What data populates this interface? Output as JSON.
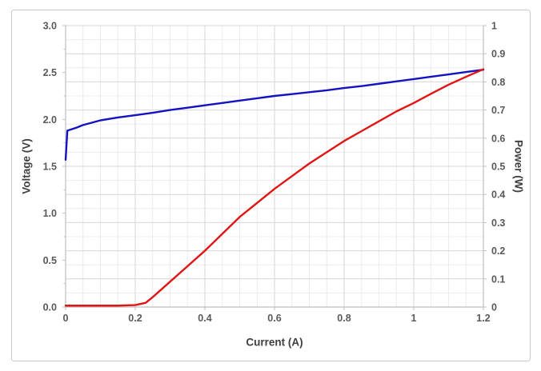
{
  "window": {
    "background": "#ffffff",
    "card_border_color": "#c9c9c9"
  },
  "colors": {
    "text_tick": "#595959",
    "text_title": "#404040",
    "axis_line": "#bfbfbf",
    "grid_major": "#d6d6d6",
    "grid_minor": "#ececec",
    "voltage_line": "#1313c4",
    "power_line": "#e11414"
  },
  "chart_data": {
    "type": "line",
    "title": "",
    "xlabel": "Current (A)",
    "ylabel_left": "Voltage (V)",
    "ylabel_right": "Power (W)",
    "grid": {
      "major": true,
      "minor": true,
      "legend": "none"
    },
    "x_axis": {
      "min": 0,
      "max": 1.2,
      "major_step": 0.2,
      "minor_step": 0.05,
      "tick_labels": [
        "0",
        "0.2",
        "0.4",
        "0.6",
        "0.8",
        "1",
        "1.2"
      ],
      "tick_values": [
        0,
        0.2,
        0.4,
        0.6,
        0.8,
        1.0,
        1.2
      ]
    },
    "y_axis_left": {
      "min": 0,
      "max": 3.0,
      "major_step": 0.5,
      "tick_labels": [
        "0.0",
        "0.5",
        "1.0",
        "1.5",
        "2.0",
        "2.5",
        "3.0"
      ],
      "tick_values": [
        0.0,
        0.5,
        1.0,
        1.5,
        2.0,
        2.5,
        3.0
      ]
    },
    "y_axis_right": {
      "min": 0,
      "max": 1.0,
      "major_step": 0.1,
      "minor_step": 0.05,
      "tick_labels": [
        "0",
        "0.1",
        "0.2",
        "0.3",
        "0.4",
        "0.5",
        "0.6",
        "0.7",
        "0.8",
        "0.9",
        "1"
      ],
      "tick_values": [
        0,
        0.1,
        0.2,
        0.3,
        0.4,
        0.5,
        0.6,
        0.7,
        0.8,
        0.9,
        1.0
      ]
    },
    "series": [
      {
        "name": "Voltage",
        "axis": "left",
        "color": "#1313c4",
        "points": [
          [
            0,
            1.57
          ],
          [
            0.005,
            1.88
          ],
          [
            0.03,
            1.91
          ],
          [
            0.05,
            1.94
          ],
          [
            0.08,
            1.97
          ],
          [
            0.1,
            1.99
          ],
          [
            0.15,
            2.02
          ],
          [
            0.2,
            2.045
          ],
          [
            0.25,
            2.07
          ],
          [
            0.3,
            2.1
          ],
          [
            0.35,
            2.125
          ],
          [
            0.4,
            2.15
          ],
          [
            0.45,
            2.175
          ],
          [
            0.5,
            2.2
          ],
          [
            0.55,
            2.225
          ],
          [
            0.6,
            2.25
          ],
          [
            0.65,
            2.27
          ],
          [
            0.7,
            2.29
          ],
          [
            0.75,
            2.31
          ],
          [
            0.8,
            2.335
          ],
          [
            0.85,
            2.355
          ],
          [
            0.9,
            2.38
          ],
          [
            0.95,
            2.405
          ],
          [
            1.0,
            2.43
          ],
          [
            1.05,
            2.455
          ],
          [
            1.1,
            2.48
          ],
          [
            1.15,
            2.505
          ],
          [
            1.2,
            2.53
          ]
        ]
      },
      {
        "name": "Power",
        "axis": "right",
        "color": "#e11414",
        "points": [
          [
            0,
            0.005
          ],
          [
            0.05,
            0.005
          ],
          [
            0.1,
            0.005
          ],
          [
            0.15,
            0.005
          ],
          [
            0.2,
            0.007
          ],
          [
            0.23,
            0.015
          ],
          [
            0.25,
            0.035
          ],
          [
            0.3,
            0.09
          ],
          [
            0.35,
            0.145
          ],
          [
            0.4,
            0.2
          ],
          [
            0.45,
            0.26
          ],
          [
            0.5,
            0.32
          ],
          [
            0.55,
            0.37
          ],
          [
            0.6,
            0.42
          ],
          [
            0.65,
            0.465
          ],
          [
            0.7,
            0.51
          ],
          [
            0.75,
            0.55
          ],
          [
            0.8,
            0.59
          ],
          [
            0.85,
            0.625
          ],
          [
            0.9,
            0.66
          ],
          [
            0.95,
            0.695
          ],
          [
            1.0,
            0.725
          ],
          [
            1.05,
            0.758
          ],
          [
            1.1,
            0.79
          ],
          [
            1.15,
            0.818
          ],
          [
            1.2,
            0.845
          ]
        ]
      }
    ]
  }
}
